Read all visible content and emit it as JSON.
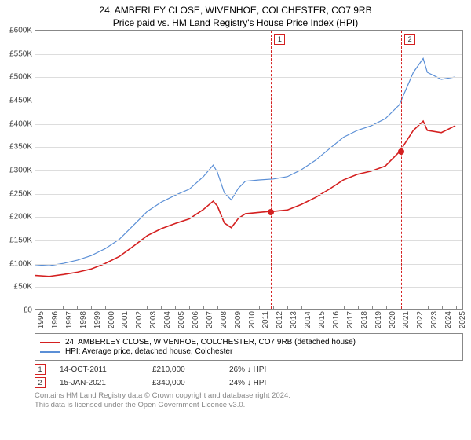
{
  "title1": "24, AMBERLEY CLOSE, WIVENHOE, COLCHESTER, CO7 9RB",
  "title2": "Price paid vs. HM Land Registry's House Price Index (HPI)",
  "chart": {
    "type": "line",
    "ylim": [
      0,
      600000
    ],
    "ytick_step": 50000,
    "ylabels": [
      "£0",
      "£50K",
      "£100K",
      "£150K",
      "£200K",
      "£250K",
      "£300K",
      "£350K",
      "£400K",
      "£450K",
      "£500K",
      "£550K",
      "£600K"
    ],
    "xlim": [
      1995,
      2025.5
    ],
    "xlabels": [
      "1995",
      "1996",
      "1997",
      "1998",
      "1999",
      "2000",
      "2001",
      "2002",
      "2003",
      "2004",
      "2005",
      "2006",
      "2007",
      "2008",
      "2009",
      "2010",
      "2011",
      "2012",
      "2013",
      "2014",
      "2015",
      "2016",
      "2017",
      "2018",
      "2019",
      "2020",
      "2021",
      "2022",
      "2023",
      "2024",
      "2025"
    ],
    "background_color": "#ffffff",
    "grid_color": "#dddddd",
    "border_color": "#888888",
    "series": [
      {
        "name": "hpi",
        "label": "HPI: Average price, detached house, Colchester",
        "color": "#5b8fd6",
        "width": 1.2,
        "data": [
          [
            1995,
            95000
          ],
          [
            1996,
            93000
          ],
          [
            1997,
            98000
          ],
          [
            1998,
            105000
          ],
          [
            1999,
            115000
          ],
          [
            2000,
            130000
          ],
          [
            2001,
            150000
          ],
          [
            2002,
            180000
          ],
          [
            2003,
            210000
          ],
          [
            2004,
            230000
          ],
          [
            2005,
            245000
          ],
          [
            2006,
            258000
          ],
          [
            2007,
            285000
          ],
          [
            2007.7,
            310000
          ],
          [
            2008,
            295000
          ],
          [
            2008.5,
            250000
          ],
          [
            2009,
            235000
          ],
          [
            2009.5,
            260000
          ],
          [
            2010,
            275000
          ],
          [
            2011,
            278000
          ],
          [
            2012,
            280000
          ],
          [
            2013,
            285000
          ],
          [
            2014,
            300000
          ],
          [
            2015,
            320000
          ],
          [
            2016,
            345000
          ],
          [
            2017,
            370000
          ],
          [
            2018,
            385000
          ],
          [
            2019,
            395000
          ],
          [
            2020,
            410000
          ],
          [
            2021,
            440000
          ],
          [
            2022,
            510000
          ],
          [
            2022.7,
            540000
          ],
          [
            2023,
            510000
          ],
          [
            2024,
            495000
          ],
          [
            2025,
            500000
          ]
        ]
      },
      {
        "name": "property",
        "label": "24, AMBERLEY CLOSE, WIVENHOE, COLCHESTER, CO7 9RB (detached house)",
        "color": "#d42020",
        "width": 1.6,
        "data": [
          [
            1995,
            72000
          ],
          [
            1996,
            70000
          ],
          [
            1997,
            74000
          ],
          [
            1998,
            79000
          ],
          [
            1999,
            86000
          ],
          [
            2000,
            98000
          ],
          [
            2001,
            113000
          ],
          [
            2002,
            135000
          ],
          [
            2003,
            158000
          ],
          [
            2004,
            173000
          ],
          [
            2005,
            184000
          ],
          [
            2006,
            194000
          ],
          [
            2007,
            214000
          ],
          [
            2007.7,
            232000
          ],
          [
            2008,
            222000
          ],
          [
            2008.5,
            185000
          ],
          [
            2009,
            175000
          ],
          [
            2009.5,
            195000
          ],
          [
            2010,
            205000
          ],
          [
            2011,
            208000
          ],
          [
            2011.78,
            210000
          ],
          [
            2012,
            210000
          ],
          [
            2013,
            213000
          ],
          [
            2014,
            225000
          ],
          [
            2015,
            240000
          ],
          [
            2016,
            258000
          ],
          [
            2017,
            278000
          ],
          [
            2018,
            290000
          ],
          [
            2019,
            297000
          ],
          [
            2020,
            308000
          ],
          [
            2021.04,
            340000
          ],
          [
            2022,
            385000
          ],
          [
            2022.7,
            405000
          ],
          [
            2023,
            385000
          ],
          [
            2024,
            380000
          ],
          [
            2025,
            395000
          ]
        ]
      }
    ],
    "markers": [
      {
        "num": "1",
        "x": 2011.78,
        "y": 210000,
        "color": "#d42020"
      },
      {
        "num": "2",
        "x": 2021.04,
        "y": 340000,
        "color": "#d42020"
      }
    ]
  },
  "legend": [
    {
      "color": "#d42020",
      "label": "24, AMBERLEY CLOSE, WIVENHOE, COLCHESTER, CO7 9RB (detached house)"
    },
    {
      "color": "#5b8fd6",
      "label": "HPI: Average price, detached house, Colchester"
    }
  ],
  "sales": [
    {
      "num": "1",
      "date": "14-OCT-2011",
      "price": "£210,000",
      "hpi": "26% ↓ HPI",
      "color": "#d42020"
    },
    {
      "num": "2",
      "date": "15-JAN-2021",
      "price": "£340,000",
      "hpi": "24% ↓ HPI",
      "color": "#d42020"
    }
  ],
  "license1": "Contains HM Land Registry data © Crown copyright and database right 2024.",
  "license2": "This data is licensed under the Open Government Licence v3.0."
}
